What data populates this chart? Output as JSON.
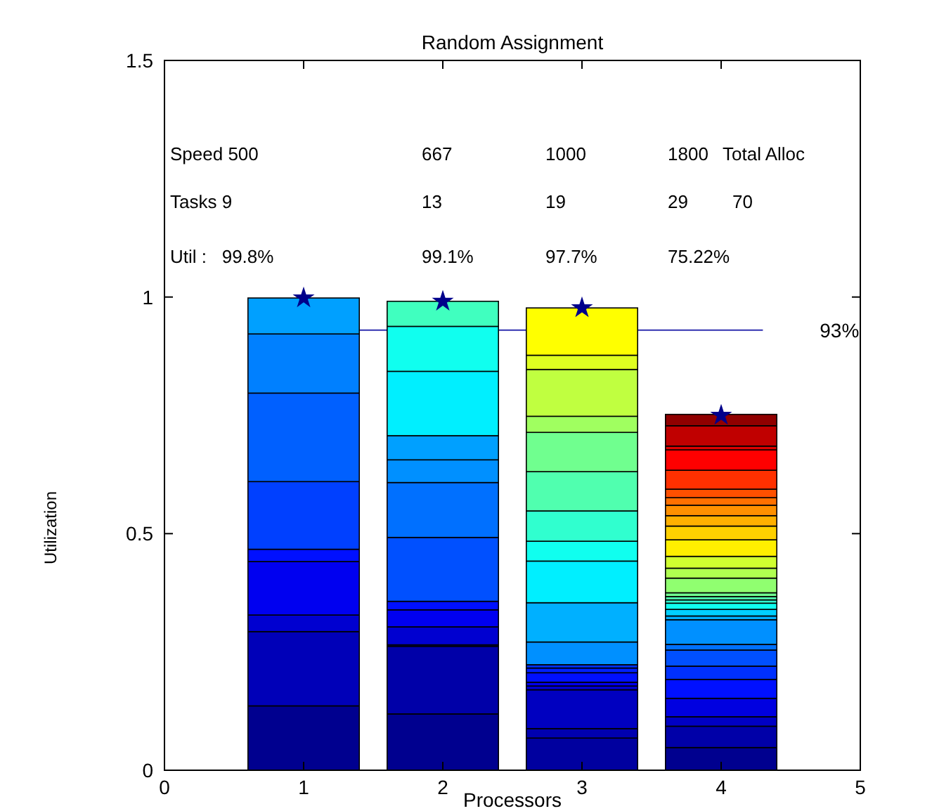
{
  "chart_data": {
    "type": "bar",
    "title": "Random Assignment",
    "xlabel": "Processors",
    "ylabel": "Utilization",
    "stacked": true,
    "x": [
      1,
      2,
      3,
      4
    ],
    "xlim": [
      0,
      5
    ],
    "xticks": [
      0,
      1,
      2,
      3,
      4,
      5
    ],
    "ylim": [
      0,
      1.5
    ],
    "yticks": [
      0,
      0.5,
      1,
      1.5
    ],
    "grid": false,
    "annotations": [
      "Speed 500",
      "667",
      "1000",
      "1800",
      "Total Alloc",
      "Tasks 9",
      "13",
      "19",
      "29",
      "70",
      "Util :   99.8%",
      "99.1%",
      "97.7%",
      "75.22%"
    ],
    "ref_lines": [
      {
        "axis": "y",
        "value": 0.93,
        "label": "93%",
        "color": "#3030b0"
      }
    ],
    "series": [
      {
        "values": [
          0.136,
          0.119,
          0.068,
          0.048
        ],
        "colors": [
          "#00008f",
          "#00008f",
          "#00009f",
          "#00008f"
        ]
      },
      {
        "values": [
          0.157,
          0.143,
          0.02,
          0.045
        ],
        "colors": [
          "#0000b8",
          "#0000a8",
          "#0000b0",
          "#0000a8"
        ]
      },
      {
        "values": [
          0.035,
          0.003,
          0.082,
          0.02
        ],
        "colors": [
          "#0000d0",
          "#0000b8",
          "#0000c0",
          "#0000c4"
        ]
      },
      {
        "values": [
          0.113,
          0.038,
          0.008,
          0.039
        ],
        "colors": [
          "#0000f0",
          "#0000d0",
          "#0000d0",
          "#0000e0"
        ]
      },
      {
        "values": [
          0.026,
          0.036,
          0.008,
          0.04
        ],
        "colors": [
          "#0010ff",
          "#0000f0",
          "#0000ef",
          "#0010ff"
        ]
      },
      {
        "values": [
          0.143,
          0.018,
          0.02,
          0.028
        ],
        "colors": [
          "#0040ff",
          "#0010ff",
          "#0010ff",
          "#0030ff"
        ]
      },
      {
        "values": [
          0.187,
          0.135,
          0.01,
          0.034
        ],
        "colors": [
          "#0060ff",
          "#0050ff",
          "#0020ff",
          "#0050ff"
        ]
      },
      {
        "values": [
          0.125,
          0.116,
          0.007,
          0.012
        ],
        "colors": [
          "#0080ff",
          "#0070ff",
          "#0030ff",
          "#0070ff"
        ]
      },
      {
        "values": [
          0.076,
          0.048,
          0.048,
          0.052
        ],
        "colors": [
          "#00a0ff",
          "#0090ff",
          "#0090ff",
          "#0090ff"
        ]
      },
      {
        "values": [
          null,
          0.051,
          0.083,
          0.008
        ],
        "colors": [
          null,
          "#00a0ff",
          "#00b0ff",
          "#00b0ff"
        ]
      },
      {
        "values": [
          null,
          0.136,
          0.088,
          0.014
        ],
        "colors": [
          null,
          "#00efff",
          "#00efff",
          "#00d0ff"
        ]
      },
      {
        "values": [
          null,
          0.095,
          0.042,
          0.013
        ],
        "colors": [
          null,
          "#10ffef",
          "#10ffef",
          "#10ffef"
        ]
      },
      {
        "values": [
          null,
          0.053,
          0.064,
          0.007
        ],
        "colors": [
          null,
          "#40ffbf",
          "#30ffcf",
          "#30ffcf"
        ]
      },
      {
        "values": [
          null,
          null,
          0.083,
          0.007
        ],
        "colors": [
          null,
          null,
          "#50ffaf",
          "#50ffaf"
        ]
      },
      {
        "values": [
          null,
          null,
          0.083,
          0.008
        ],
        "colors": [
          null,
          null,
          "#70ff8f",
          "#70ff8f"
        ]
      },
      {
        "values": [
          null,
          null,
          0.034,
          0.031
        ],
        "colors": [
          null,
          null,
          "#a0ff60",
          "#90ff70"
        ]
      },
      {
        "values": [
          null,
          null,
          0.099,
          0.021
        ],
        "colors": [
          null,
          null,
          "#c0ff40",
          "#b0ff50"
        ]
      },
      {
        "values": [
          null,
          null,
          0.03,
          0.025
        ],
        "colors": [
          null,
          null,
          "#dfff20",
          "#d0ff30"
        ]
      },
      {
        "values": [
          null,
          null,
          0.1,
          0.035
        ],
        "colors": [
          null,
          null,
          "#ffff00",
          "#ffef00"
        ]
      },
      {
        "values": [
          null,
          null,
          null,
          0.029
        ],
        "colors": [
          null,
          null,
          null,
          "#ffd000"
        ]
      },
      {
        "values": [
          null,
          null,
          null,
          0.022
        ],
        "colors": [
          null,
          null,
          null,
          "#ffb000"
        ]
      },
      {
        "values": [
          null,
          null,
          null,
          0.022
        ],
        "colors": [
          null,
          null,
          null,
          "#ff9000"
        ]
      },
      {
        "values": [
          null,
          null,
          null,
          0.016
        ],
        "colors": [
          null,
          null,
          null,
          "#ff7000"
        ]
      },
      {
        "values": [
          null,
          null,
          null,
          0.018
        ],
        "colors": [
          null,
          null,
          null,
          "#ff5000"
        ]
      },
      {
        "values": [
          null,
          null,
          null,
          0.04
        ],
        "colors": [
          null,
          null,
          null,
          "#ff3000"
        ]
      },
      {
        "values": [
          null,
          null,
          null,
          0.043
        ],
        "colors": [
          null,
          null,
          null,
          "#ff0000"
        ]
      },
      {
        "values": [
          null,
          null,
          null,
          0.008
        ],
        "colors": [
          null,
          null,
          null,
          "#df0000"
        ]
      },
      {
        "values": [
          null,
          null,
          null,
          0.043
        ],
        "colors": [
          null,
          null,
          null,
          "#c00000"
        ]
      },
      {
        "values": [
          null,
          null,
          null,
          0.024
        ],
        "colors": [
          null,
          null,
          null,
          "#900000"
        ]
      },
      {
        "type": "scatter",
        "x": [
          1,
          2,
          3,
          4
        ],
        "values": [
          0.998,
          0.991,
          0.977,
          0.75
        ],
        "color": "#00008b",
        "marker": "star"
      }
    ]
  }
}
